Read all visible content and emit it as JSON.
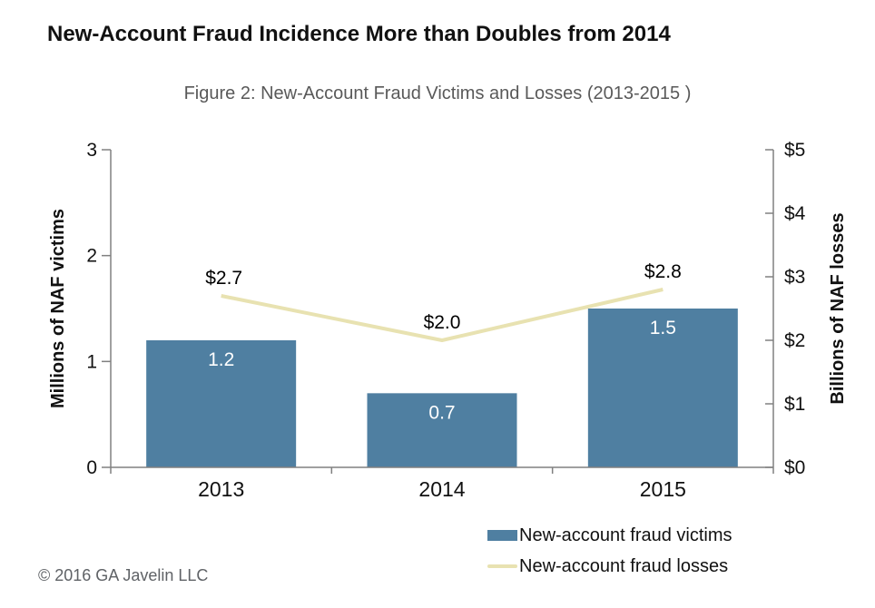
{
  "page": {
    "title": "New-Account Fraud Incidence More than Doubles from 2014",
    "subtitle": "Figure 2: New-Account Fraud Victims and Losses (2013-2015 )",
    "copyright": "© 2016 GA Javelin LLC"
  },
  "chart_data": {
    "type": "bar",
    "categories": [
      "2013",
      "2014",
      "2015"
    ],
    "series": [
      {
        "name": "New-account fraud victims",
        "type": "bar",
        "axis": "left",
        "values": [
          1.2,
          0.7,
          1.5
        ],
        "labels": [
          "1.2",
          "0.7",
          "1.5"
        ],
        "color": "#4f7fa1",
        "label_color": "#ffffff"
      },
      {
        "name": "New-account fraud losses",
        "type": "line",
        "axis": "right",
        "values": [
          2.7,
          2.0,
          2.8
        ],
        "labels": [
          "$2.7",
          "$2.0",
          "$2.8"
        ],
        "color": "#e8e2b1",
        "label_color": "#000000"
      }
    ],
    "left_axis": {
      "label": "Millions of NAF victims",
      "min": 0,
      "max": 3,
      "tick_values": [
        0,
        1,
        2,
        3
      ],
      "tick_labels": [
        "0",
        "1",
        "2",
        "3"
      ]
    },
    "right_axis": {
      "label": "Billions of NAF losses",
      "min": 0,
      "max": 5,
      "tick_values": [
        0,
        1,
        2,
        3,
        4,
        5
      ],
      "tick_labels": [
        "$0",
        "$1",
        "$2",
        "$3",
        "$4",
        "$5"
      ]
    },
    "grid": false,
    "legend_position": "bottom-right",
    "axis_color": "#808080",
    "tick_label_color": "#111111"
  }
}
